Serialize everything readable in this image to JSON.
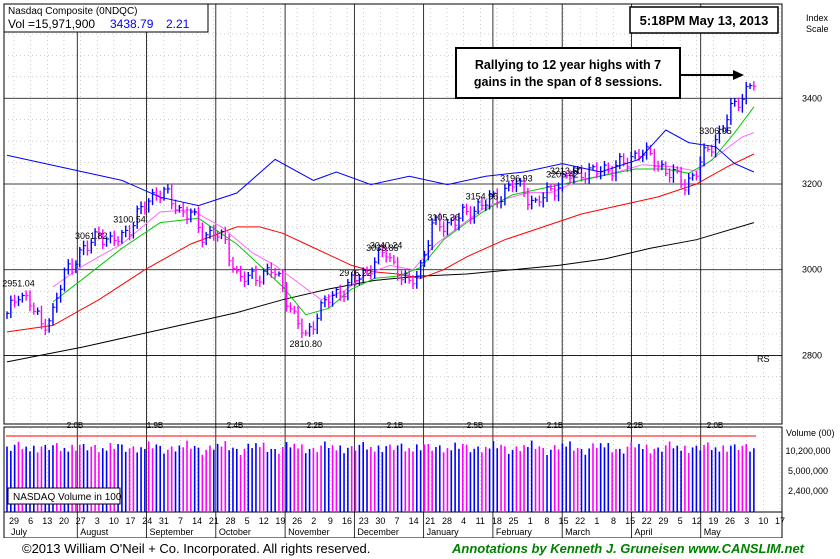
{
  "header": {
    "index_name": "Nasdaq Composite",
    "symbol": "(0NDQC)",
    "vol_label": "Vol =15,971,900",
    "price": "3438.79",
    "change": "2.21",
    "timestamp": "5:18PM May 13, 2013",
    "scale_label_1": "Index",
    "scale_label_2": "Scale",
    "annotation_line1": "Rallying to 12 year highs with 7",
    "annotation_line2": "gains in the span of 8 sessions.",
    "volume_box_label": "NASDAQ Volume in 100",
    "volume_axis_title": "Volume (00)",
    "rs_label": "RS"
  },
  "footer": {
    "copyright": "©2013 William O'Neil + Co. Incorporated. All rights reserved.",
    "annotations_by": "Annotations by Kenneth J. Gruneisen www.CANSLIM.net"
  },
  "colors": {
    "up_bar": "#0000ff",
    "down_bar": "#ff00ff",
    "ma50": "#00cc00",
    "ma10": "#ff66ff",
    "ma21": "#ff0000",
    "ma200": "#000000",
    "rs_line": "#0000ff",
    "grid": "#999999"
  },
  "chart_data": {
    "type": "candlestick",
    "price_axis": {
      "ticks": [
        2800,
        3000,
        3200,
        3400
      ],
      "range": [
        2640,
        3620
      ],
      "scale": "linear"
    },
    "volume_axis": {
      "ticks": [
        "10,200,000",
        "5,000,000",
        "2,400,000"
      ]
    },
    "x_months": [
      "July",
      "August",
      "September",
      "October",
      "November",
      "December",
      "January",
      "February",
      "March",
      "April",
      "May"
    ],
    "x_days": [
      "29",
      "6",
      "13",
      "20",
      "27",
      "3",
      "10",
      "17",
      "24",
      "31",
      "7",
      "14",
      "21",
      "28",
      "5",
      "12",
      "19",
      "26",
      "2",
      "9",
      "16",
      "23",
      "30",
      "7",
      "14",
      "21",
      "28",
      "4",
      "11",
      "18",
      "25",
      "1",
      "8",
      "15",
      "22",
      "1",
      "8",
      "15",
      "22",
      "29",
      "5",
      "12",
      "19",
      "26",
      "3",
      "10",
      "17"
    ],
    "price_labels": [
      {
        "text": "2976.22",
        "value": 2976.22
      },
      {
        "text": "3100.54",
        "value": 3100.54
      },
      {
        "text": "3040.24",
        "value": 3040.24
      },
      {
        "text": "3196.93",
        "value": 3196.93
      },
      {
        "text": "3033.85",
        "value": 3033.85
      },
      {
        "text": "2810.80",
        "value": 2810.8
      },
      {
        "text": "3061.82",
        "value": 3061.82
      },
      {
        "text": "2951.04",
        "value": 2951.04
      },
      {
        "text": "3213.60",
        "value": 3213.6
      },
      {
        "text": "3105.36",
        "value": 3105.36
      },
      {
        "text": "3205.42",
        "value": 3205.42
      },
      {
        "text": "3306.95",
        "value": 3306.95
      },
      {
        "text": "3154.96",
        "value": 3154.96
      }
    ],
    "volume_labels": [
      "2.0B",
      "1.9B",
      "2.4B",
      "2.2B",
      "2.1B",
      "2.5B",
      "2.1B",
      "2.2B",
      "2.0B"
    ],
    "price_path": [
      [
        0,
        2890
      ],
      [
        3,
        2950
      ],
      [
        6,
        2920
      ],
      [
        9,
        2870
      ],
      [
        12,
        2900
      ],
      [
        15,
        2990
      ],
      [
        18,
        3030
      ],
      [
        21,
        3050
      ],
      [
        24,
        3090
      ],
      [
        27,
        3060
      ],
      [
        30,
        3080
      ],
      [
        33,
        3110
      ],
      [
        36,
        3150
      ],
      [
        39,
        3185
      ],
      [
        42,
        3170
      ],
      [
        45,
        3140
      ],
      [
        48,
        3130
      ],
      [
        51,
        3080
      ],
      [
        54,
        3090
      ],
      [
        57,
        3060
      ],
      [
        60,
        2990
      ],
      [
        63,
        2975
      ],
      [
        66,
        2990
      ],
      [
        69,
        3000
      ],
      [
        72,
        2960
      ],
      [
        75,
        2890
      ],
      [
        78,
        2840
      ],
      [
        81,
        2900
      ],
      [
        84,
        2930
      ],
      [
        87,
        2950
      ],
      [
        90,
        2970
      ],
      [
        93,
        2990
      ],
      [
        96,
        3020
      ],
      [
        99,
        3040
      ],
      [
        102,
        3000
      ],
      [
        105,
        2960
      ],
      [
        108,
        3010
      ],
      [
        111,
        3100
      ],
      [
        114,
        3105
      ],
      [
        117,
        3115
      ],
      [
        120,
        3130
      ],
      [
        123,
        3150
      ],
      [
        126,
        3160
      ],
      [
        129,
        3175
      ],
      [
        132,
        3200
      ],
      [
        135,
        3185
      ],
      [
        138,
        3150
      ],
      [
        141,
        3180
      ],
      [
        144,
        3200
      ],
      [
        147,
        3220
      ],
      [
        150,
        3230
      ],
      [
        153,
        3225
      ],
      [
        156,
        3235
      ],
      [
        159,
        3240
      ],
      [
        162,
        3250
      ],
      [
        165,
        3280
      ],
      [
        168,
        3260
      ],
      [
        171,
        3240
      ],
      [
        174,
        3220
      ],
      [
        177,
        3200
      ],
      [
        180,
        3230
      ],
      [
        183,
        3280
      ],
      [
        186,
        3320
      ],
      [
        189,
        3370
      ],
      [
        192,
        3410
      ],
      [
        195,
        3435
      ]
    ],
    "ma50": [
      [
        12,
        2925
      ],
      [
        20,
        2980
      ],
      [
        30,
        3050
      ],
      [
        40,
        3110
      ],
      [
        50,
        3120
      ],
      [
        60,
        3060
      ],
      [
        66,
        3010
      ],
      [
        72,
        2960
      ],
      [
        78,
        2895
      ],
      [
        84,
        2910
      ],
      [
        90,
        2955
      ],
      [
        96,
        2980
      ],
      [
        102,
        2985
      ],
      [
        108,
        3005
      ],
      [
        114,
        3070
      ],
      [
        120,
        3110
      ],
      [
        126,
        3145
      ],
      [
        132,
        3175
      ],
      [
        140,
        3190
      ],
      [
        148,
        3205
      ],
      [
        156,
        3220
      ],
      [
        164,
        3235
      ],
      [
        172,
        3235
      ],
      [
        178,
        3225
      ],
      [
        184,
        3255
      ],
      [
        190,
        3320
      ],
      [
        195,
        3380
      ]
    ],
    "ma10": [
      [
        12,
        2960
      ],
      [
        20,
        3010
      ],
      [
        30,
        3060
      ],
      [
        40,
        3135
      ],
      [
        48,
        3140
      ],
      [
        56,
        3100
      ],
      [
        64,
        3040
      ],
      [
        70,
        3010
      ],
      [
        76,
        2970
      ],
      [
        82,
        2930
      ],
      [
        88,
        2950
      ],
      [
        94,
        2990
      ],
      [
        100,
        3010
      ],
      [
        106,
        3000
      ],
      [
        112,
        3060
      ],
      [
        118,
        3100
      ],
      [
        124,
        3140
      ],
      [
        130,
        3165
      ],
      [
        136,
        3180
      ],
      [
        142,
        3180
      ],
      [
        150,
        3210
      ],
      [
        158,
        3225
      ],
      [
        166,
        3245
      ],
      [
        174,
        3240
      ],
      [
        180,
        3230
      ],
      [
        186,
        3270
      ],
      [
        192,
        3310
      ],
      [
        195,
        3320
      ]
    ],
    "ma21": [
      [
        0,
        2855
      ],
      [
        12,
        2870
      ],
      [
        24,
        2930
      ],
      [
        36,
        3000
      ],
      [
        48,
        3060
      ],
      [
        60,
        3100
      ],
      [
        66,
        3100
      ],
      [
        72,
        3085
      ],
      [
        78,
        3060
      ],
      [
        84,
        3035
      ],
      [
        90,
        3010
      ],
      [
        96,
        2995
      ],
      [
        102,
        2990
      ],
      [
        108,
        2980
      ],
      [
        114,
        3000
      ],
      [
        120,
        3030
      ],
      [
        130,
        3070
      ],
      [
        140,
        3100
      ],
      [
        150,
        3130
      ],
      [
        160,
        3150
      ],
      [
        170,
        3170
      ],
      [
        180,
        3200
      ],
      [
        188,
        3240
      ],
      [
        195,
        3270
      ]
    ],
    "ma200": [
      [
        0,
        2785
      ],
      [
        20,
        2820
      ],
      [
        40,
        2860
      ],
      [
        60,
        2900
      ],
      [
        72,
        2930
      ],
      [
        84,
        2955
      ],
      [
        96,
        2975
      ],
      [
        108,
        2985
      ],
      [
        120,
        2990
      ],
      [
        132,
        3000
      ],
      [
        144,
        3010
      ],
      [
        156,
        3025
      ],
      [
        168,
        3050
      ],
      [
        180,
        3070
      ],
      [
        195,
        3110
      ]
    ],
    "rs_line_path": [
      [
        0,
        0.64
      ],
      [
        10,
        0.62
      ],
      [
        20,
        0.6
      ],
      [
        30,
        0.58
      ],
      [
        40,
        0.54
      ],
      [
        50,
        0.52
      ],
      [
        60,
        0.55
      ],
      [
        70,
        0.63
      ],
      [
        80,
        0.58
      ],
      [
        86,
        0.6
      ],
      [
        95,
        0.57
      ],
      [
        105,
        0.59
      ],
      [
        115,
        0.57
      ],
      [
        125,
        0.59
      ],
      [
        135,
        0.6
      ],
      [
        145,
        0.62
      ],
      [
        155,
        0.6
      ],
      [
        165,
        0.63
      ],
      [
        172,
        0.7
      ],
      [
        178,
        0.67
      ],
      [
        185,
        0.66
      ],
      [
        190,
        0.62
      ],
      [
        195,
        0.6
      ]
    ],
    "volume_levels": [
      0.77,
      0.7,
      0.76,
      0.8,
      0.73,
      0.78,
      0.74,
      0.81,
      0.72,
      0.77
    ]
  }
}
